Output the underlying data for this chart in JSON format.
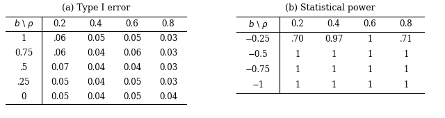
{
  "title_a": "(a) Type I error",
  "title_b": "(b) Statistical power",
  "table_a_header": [
    "b\\rho",
    "0.2",
    "0.4",
    "0.6",
    "0.8"
  ],
  "table_a_rows": [
    [
      "1",
      ".06",
      "0.05",
      "0.05",
      "0.03"
    ],
    [
      "0.75",
      ".06",
      "0.04",
      "0.06",
      "0.03"
    ],
    [
      ".5",
      "0.07",
      "0.04",
      "0.04",
      "0.03"
    ],
    [
      ".25",
      "0.05",
      "0.04",
      "0.05",
      "0.03"
    ],
    [
      "0",
      "0.05",
      "0.04",
      "0.05",
      "0.04"
    ]
  ],
  "table_b_header": [
    "b\\rho",
    "0.2",
    "0.4",
    "0.6",
    "0.8"
  ],
  "table_b_rows": [
    [
      "−0.25",
      ".70",
      "0.97",
      "1",
      ".71"
    ],
    [
      "−0.5",
      "1",
      "1",
      "1",
      "1"
    ],
    [
      "−0.75",
      "1",
      "1",
      "1",
      "1"
    ],
    [
      "−1",
      "1",
      "1",
      "1",
      "1"
    ]
  ],
  "bg_color": "#ffffff",
  "text_color": "#000000",
  "fontsize": 8.5
}
